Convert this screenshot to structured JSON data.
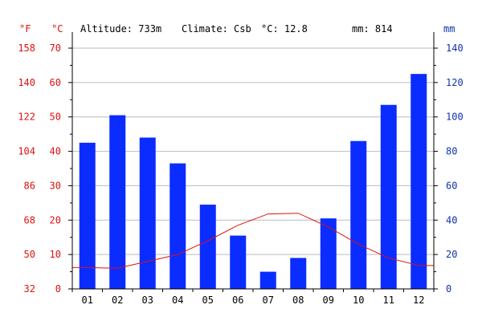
{
  "header": {
    "altitude_label": "Altitude: 733m",
    "climate_label": "Climate: Csb",
    "temp_label": "°C: 12.8",
    "precip_label": "mm: 814"
  },
  "colors": {
    "temperature": "#dd1111",
    "precipitation": "#0b2cff",
    "precip_axis": "#1133aa",
    "grid": "#bbbbbb",
    "text": "#000000"
  },
  "chart_data": {
    "type": "bar",
    "categories": [
      "01",
      "02",
      "03",
      "04",
      "05",
      "06",
      "07",
      "08",
      "09",
      "10",
      "11",
      "12"
    ],
    "series": [
      {
        "type": "bar",
        "axis": "right",
        "values": [
          85,
          101,
          88,
          73,
          49,
          31,
          10,
          18,
          41,
          86,
          107,
          125
        ]
      },
      {
        "type": "line",
        "axis": "left",
        "values": [
          6.2,
          6.0,
          8.0,
          10.0,
          14.0,
          18.5,
          21.8,
          22.0,
          18.0,
          13.0,
          9.0,
          6.8
        ]
      }
    ],
    "celsius_axis": {
      "label": "°C",
      "min": 0,
      "max": 70,
      "ticks": [
        "0",
        "10",
        "20",
        "30",
        "40",
        "50",
        "60",
        "70"
      ]
    },
    "fahrenheit_axis": {
      "label": "°F",
      "min": 32,
      "max": 158,
      "ticks": [
        "32",
        "50",
        "68",
        "86",
        "104",
        "122",
        "140",
        "158"
      ]
    },
    "precip_axis": {
      "label": "mm",
      "min": 0,
      "max": 140,
      "ticks": [
        "0",
        "20",
        "40",
        "60",
        "80",
        "100",
        "120",
        "140"
      ]
    },
    "grid": true
  }
}
